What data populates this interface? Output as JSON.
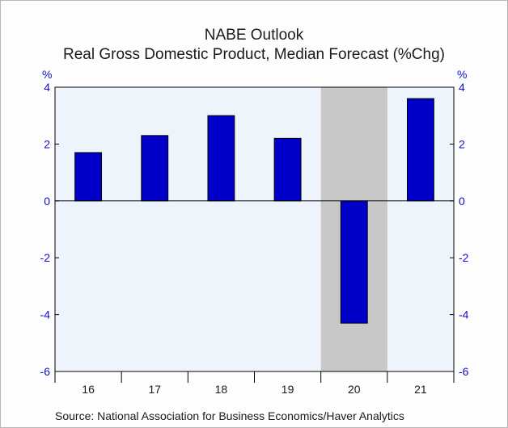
{
  "chart_data": {
    "type": "bar",
    "title": "NABE Outlook",
    "subtitle": "Real Gross Domestic Product, Median Forecast (%Chg)",
    "ylabel_left": "%",
    "ylabel_right": "%",
    "categories": [
      "16",
      "17",
      "18",
      "19",
      "20",
      "21"
    ],
    "values": [
      1.7,
      2.3,
      3.0,
      2.2,
      -4.3,
      3.6
    ],
    "ylim": [
      -6,
      4
    ],
    "yticks": [
      4,
      2,
      0,
      -2,
      -4,
      -6
    ],
    "highlight_category": "20",
    "colors": {
      "bar": "#0000c8",
      "plot_background": "#eef4fb",
      "recession_shade": "#c8c8c8",
      "tick_labels": "#1010c8"
    },
    "source": "Source:  National Association for Business Economics/Haver Analytics"
  }
}
